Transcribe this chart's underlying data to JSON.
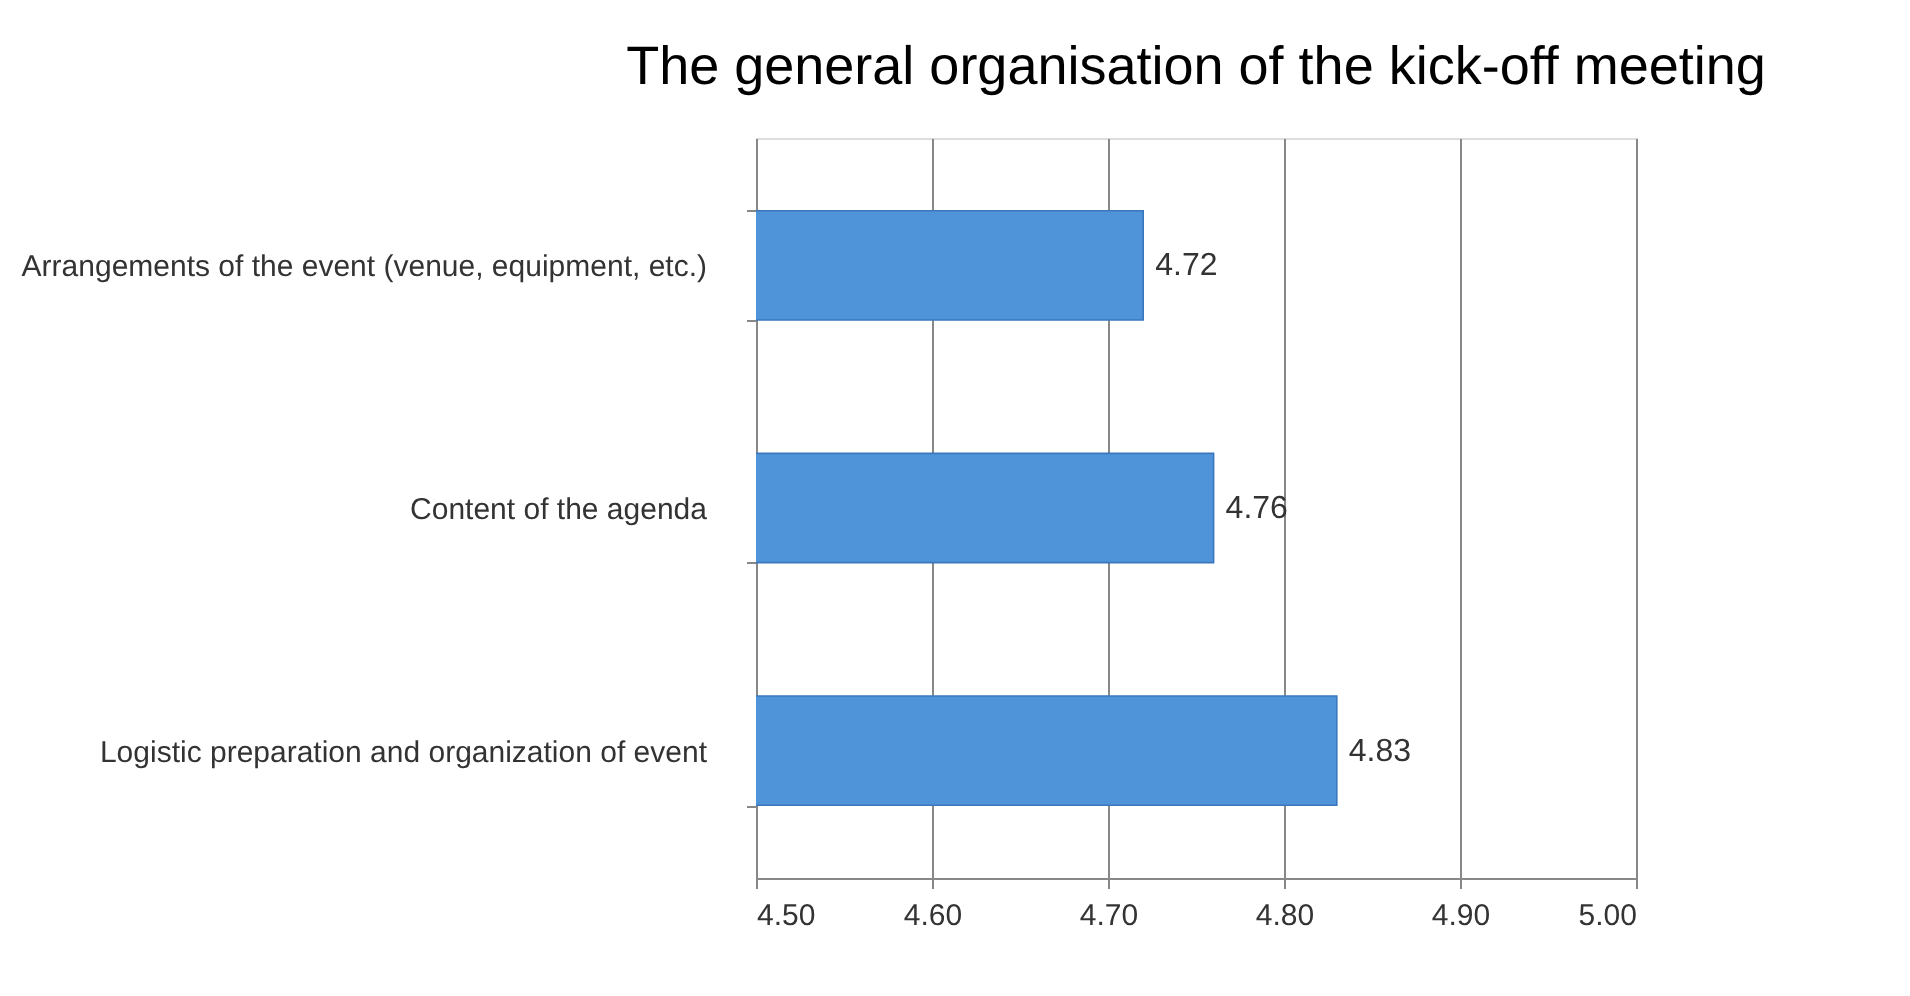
{
  "chart_data": {
    "type": "bar",
    "orientation": "horizontal",
    "title": "The general organisation of the kick-off meeting",
    "categories": [
      "Arrangements of the event (venue, equipment, etc.)",
      "Content of the agenda",
      "Logistic preparation and organization of event"
    ],
    "values": [
      4.72,
      4.76,
      4.83
    ],
    "color": "#4f93d8",
    "xlim": [
      4.5,
      5.0
    ],
    "xticks": [
      {
        "value": 4.5,
        "label": "4.50"
      },
      {
        "value": 4.6,
        "label": "4.60"
      },
      {
        "value": 4.7,
        "label": "4.70"
      },
      {
        "value": 4.8,
        "label": "4.80"
      },
      {
        "value": 4.9,
        "label": "4.90"
      },
      {
        "value": 5.0,
        "label": "5.00"
      }
    ],
    "grid": "x",
    "data_labels": true
  }
}
